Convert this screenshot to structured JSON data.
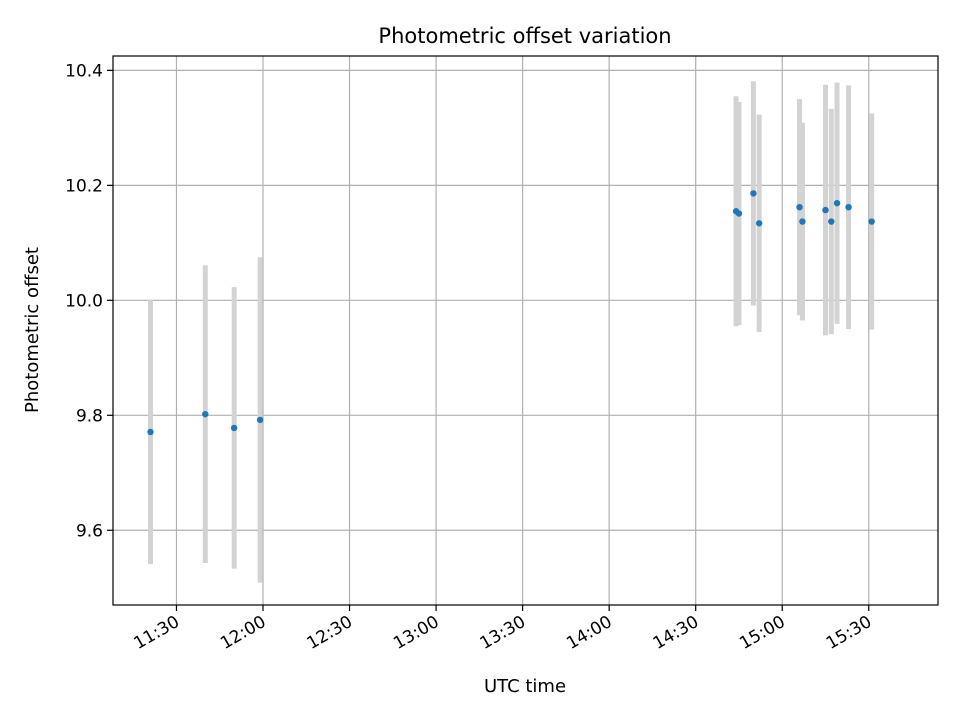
{
  "chart_data": {
    "type": "scatter",
    "title": "Photometric offset variation",
    "xlabel": "UTC time",
    "ylabel": "Photometric offset",
    "x_axis": "time",
    "xlim": [
      "11:08",
      "15:54"
    ],
    "ylim": [
      9.47,
      10.425
    ],
    "x_ticks": [
      "11:30",
      "12:00",
      "12:30",
      "13:00",
      "13:30",
      "14:00",
      "14:30",
      "15:00",
      "15:30"
    ],
    "y_ticks": [
      9.6,
      9.8,
      10.0,
      10.2,
      10.4
    ],
    "grid": true,
    "colors": {
      "point": "#1f77b4",
      "errorbar": "#d3d3d3",
      "grid": "#b0b0b0"
    },
    "points": [
      {
        "x": "11:21",
        "y": 9.771,
        "yerr": 0.23
      },
      {
        "x": "11:40",
        "y": 9.802,
        "yerr": 0.259
      },
      {
        "x": "11:50",
        "y": 9.778,
        "yerr": 0.245
      },
      {
        "x": "11:59",
        "y": 9.792,
        "yerr": 0.283
      },
      {
        "x": "14:44",
        "y": 10.155,
        "yerr": 0.2
      },
      {
        "x": "14:45",
        "y": 10.151,
        "yerr": 0.194
      },
      {
        "x": "14:50",
        "y": 10.186,
        "yerr": 0.195
      },
      {
        "x": "14:52",
        "y": 10.134,
        "yerr": 0.189
      },
      {
        "x": "15:06",
        "y": 10.162,
        "yerr": 0.188
      },
      {
        "x": "15:07",
        "y": 10.137,
        "yerr": 0.172
      },
      {
        "x": "15:15",
        "y": 10.157,
        "yerr": 0.218
      },
      {
        "x": "15:17",
        "y": 10.137,
        "yerr": 0.196
      },
      {
        "x": "15:19",
        "y": 10.169,
        "yerr": 0.21
      },
      {
        "x": "15:23",
        "y": 10.162,
        "yerr": 0.212
      },
      {
        "x": "15:31",
        "y": 10.137,
        "yerr": 0.188
      }
    ]
  }
}
